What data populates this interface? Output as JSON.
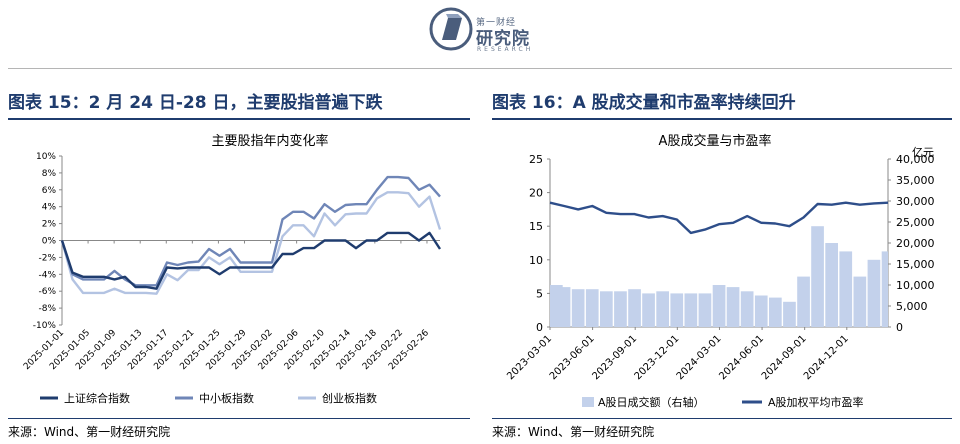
{
  "logo": {
    "small": "第一财经",
    "main": "研究院",
    "sub": "RESEARCH"
  },
  "left": {
    "title": "图表 15：2 月 24 日-28 日，主要股指普遍下跌",
    "source": "来源：Wind、第一财经研究院"
  },
  "right": {
    "title": "图表 16：A 股成交量和市盈率持续回升",
    "source": "来源：Wind、第一财经研究院"
  },
  "colors": {
    "navy": "#1f3c6e",
    "mid": "#6f86b7",
    "light": "#b3c3e2",
    "bars": "#c3d1eb"
  },
  "chart_data": [
    {
      "type": "line",
      "title": "主要股指年内变化率",
      "x": [
        "2025-01-01",
        "2025-01-02",
        "2025-01-03",
        "2025-01-06",
        "2025-01-07",
        "2025-01-08",
        "2025-01-09",
        "2025-01-10",
        "2025-01-13",
        "2025-01-14",
        "2025-01-15",
        "2025-01-16",
        "2025-01-17",
        "2025-01-20",
        "2025-01-21",
        "2025-01-22",
        "2025-01-23",
        "2025-01-24",
        "2025-01-27",
        "2025-02-05",
        "2025-02-06",
        "2025-02-07",
        "2025-02-10",
        "2025-02-11",
        "2025-02-12",
        "2025-02-13",
        "2025-02-14",
        "2025-02-17",
        "2025-02-18",
        "2025-02-19",
        "2025-02-20",
        "2025-02-21",
        "2025-02-24",
        "2025-02-25",
        "2025-02-26",
        "2025-02-27",
        "2025-02-28"
      ],
      "tick_labels": [
        "2025-01-01",
        "2025-01-05",
        "2025-01-09",
        "2025-01-13",
        "2025-01-17",
        "2025-01-21",
        "2025-01-25",
        "2025-01-29",
        "2025-02-02",
        "2025-02-06",
        "2025-02-10",
        "2025-02-14",
        "2025-02-18",
        "2025-02-22",
        "2025-02-26"
      ],
      "series": [
        {
          "name": "上证综合指数",
          "values": [
            0,
            -3.8,
            -4.3,
            -4.3,
            -4.3,
            -4.6,
            -4.3,
            -5.5,
            -5.5,
            -5.7,
            -3.2,
            -3.3,
            -3.2,
            -3.2,
            -3.2,
            -4.0,
            -3.2,
            -3.2,
            -3.2,
            -3.2,
            -3.2,
            -1.6,
            -1.6,
            -0.9,
            -0.9,
            0,
            0,
            0,
            -0.9,
            0,
            0,
            0.9,
            0.9,
            0.9,
            0,
            0.9,
            -1.0
          ]
        },
        {
          "name": "中小板指数",
          "values": [
            0,
            -4.0,
            -4.6,
            -4.6,
            -4.6,
            -3.6,
            -4.6,
            -5.3,
            -5.3,
            -5.3,
            -2.6,
            -2.9,
            -2.6,
            -2.5,
            -1.0,
            -1.8,
            -1.0,
            -2.6,
            -2.6,
            -2.6,
            -2.6,
            2.5,
            3.4,
            3.4,
            2.6,
            4.3,
            3.4,
            4.2,
            4.3,
            4.3,
            6.0,
            7.5,
            7.5,
            7.4,
            6.0,
            6.6,
            5.2
          ]
        },
        {
          "name": "创业板指数",
          "values": [
            0,
            -4.6,
            -6.2,
            -6.2,
            -6.2,
            -5.7,
            -6.2,
            -6.2,
            -6.2,
            -6.3,
            -4.0,
            -4.7,
            -3.5,
            -3.5,
            -2.0,
            -2.8,
            -2.0,
            -3.7,
            -3.7,
            -3.7,
            -3.7,
            0.5,
            1.8,
            1.8,
            0.5,
            3.2,
            1.8,
            3.1,
            3.2,
            3.2,
            5.0,
            5.7,
            5.7,
            5.6,
            4.0,
            5.2,
            1.3
          ]
        }
      ],
      "y_ticks": [
        "10%",
        "8%",
        "6%",
        "4%",
        "2%",
        "0%",
        "-2%",
        "-4%",
        "-6%",
        "-8%",
        "-10%"
      ],
      "ylim": [
        -10,
        10
      ],
      "legend": "bottom"
    },
    {
      "type": "bar+line",
      "title": "A股成交量与市盈率",
      "right_unit": "亿元",
      "x": [
        "2023-03-01",
        "2023-04-01",
        "2023-05-01",
        "2023-06-01",
        "2023-07-01",
        "2023-08-01",
        "2023-09-01",
        "2023-10-01",
        "2023-11-01",
        "2023-12-01",
        "2024-01-01",
        "2024-02-01",
        "2024-03-01",
        "2024-04-01",
        "2024-05-01",
        "2024-06-01",
        "2024-07-01",
        "2024-08-01",
        "2024-09-01",
        "2024-10-01",
        "2024-11-01",
        "2024-12-01",
        "2025-01-01",
        "2025-02-01",
        "2025-02-28"
      ],
      "tick_labels": [
        "2023-03-01",
        "2023-06-01",
        "2023-09-01",
        "2023-12-01",
        "2024-03-01",
        "2024-06-01",
        "2024-09-01",
        "2024-12-01"
      ],
      "series": [
        {
          "name": "A股日成交额（右轴）",
          "axis": "right",
          "values": [
            10000,
            9500,
            9000,
            9000,
            8500,
            8500,
            9000,
            8000,
            8500,
            8000,
            8000,
            8000,
            10000,
            9500,
            8500,
            7500,
            7000,
            6000,
            12000,
            24000,
            20000,
            18000,
            12000,
            16000,
            18000
          ]
        },
        {
          "name": "A股加权平均市盈率",
          "axis": "left",
          "values": [
            18.5,
            18.0,
            17.5,
            18.0,
            17.0,
            16.8,
            16.8,
            16.3,
            16.5,
            16.0,
            14.0,
            14.5,
            15.3,
            15.5,
            16.5,
            15.5,
            15.4,
            15.0,
            16.3,
            18.3,
            18.2,
            18.5,
            18.2,
            18.4,
            18.5
          ]
        }
      ],
      "left_ticks": [
        "25",
        "20",
        "15",
        "10",
        "5",
        "0"
      ],
      "right_ticks": [
        "40,000",
        "35,000",
        "30,000",
        "25,000",
        "20,000",
        "15,000",
        "10,000",
        "5,000",
        "0"
      ],
      "ylim_left": [
        0,
        25
      ],
      "ylim_right": [
        0,
        40000
      ],
      "legend": "bottom"
    }
  ]
}
